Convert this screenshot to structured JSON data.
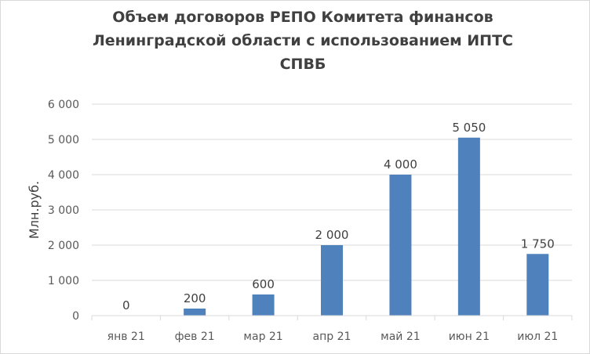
{
  "chart_data": {
    "type": "bar",
    "title_lines": [
      "Объем  договоров РЕПО Комитета финансов",
      "Ленинградской области с использованием ИПТС",
      "СПВБ"
    ],
    "ylabel": "Млн.руб.",
    "xlabel": "",
    "categories": [
      "янв 21",
      "фев 21",
      "мар 21",
      "апр 21",
      "май 21",
      "июн 21",
      "июл 21"
    ],
    "values": [
      0,
      200,
      600,
      2000,
      4000,
      5050,
      1750
    ],
    "data_labels": [
      "0",
      "200",
      "600",
      "2 000",
      "4 000",
      "5 050",
      "1 750"
    ],
    "ylim": [
      0,
      6000
    ],
    "yticks": [
      0,
      1000,
      2000,
      3000,
      4000,
      5000,
      6000
    ],
    "ytick_labels": [
      "0",
      "1 000",
      "2 000",
      "3 000",
      "4 000",
      "5 000",
      "6 000"
    ],
    "grid": true,
    "legend": "none",
    "bar_color": "#4f81bd",
    "grid_color": "#d9d9d9"
  }
}
